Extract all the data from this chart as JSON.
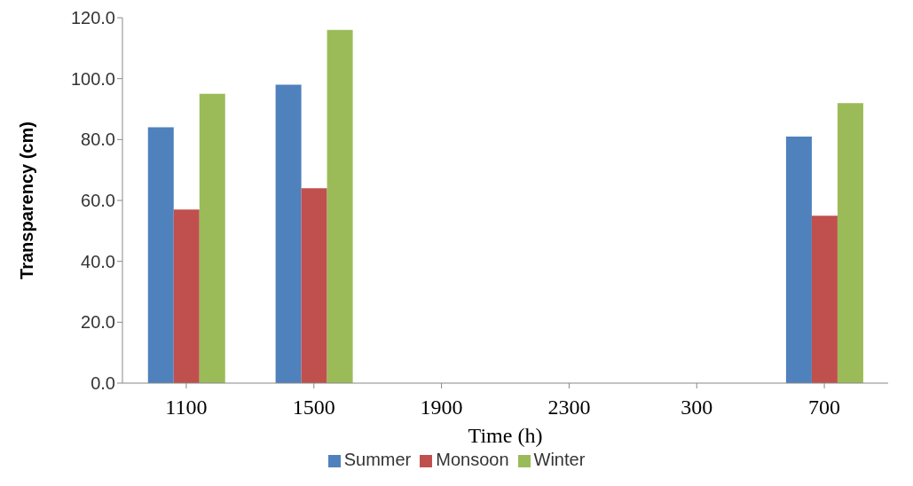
{
  "chart_data": {
    "type": "bar",
    "xlabel": "Time (h)",
    "ylabel": "Transparency   (cm)",
    "categories": [
      "1100",
      "1500",
      "1900",
      "2300",
      "300",
      "700"
    ],
    "series": [
      {
        "name": "Summer",
        "color": "#4f81bd",
        "values": [
          84,
          98,
          0,
          0,
          0,
          81
        ]
      },
      {
        "name": "Monsoon",
        "color": "#c0504d",
        "values": [
          57,
          64,
          0,
          0,
          0,
          55
        ]
      },
      {
        "name": "Winter",
        "color": "#9bbb59",
        "values": [
          95,
          116,
          0,
          0,
          0,
          92
        ]
      }
    ],
    "ylim": [
      0,
      120
    ],
    "yticks": [
      {
        "value": 0,
        "label": "0.0"
      },
      {
        "value": 20,
        "label": "20.0"
      },
      {
        "value": 40,
        "label": "40.0"
      },
      {
        "value": 60,
        "label": "60.0"
      },
      {
        "value": 80,
        "label": "80.0"
      },
      {
        "value": 100,
        "label": "100.0"
      },
      {
        "value": 120,
        "label": "120.0"
      }
    ],
    "grid": false,
    "legend": "bottom"
  }
}
